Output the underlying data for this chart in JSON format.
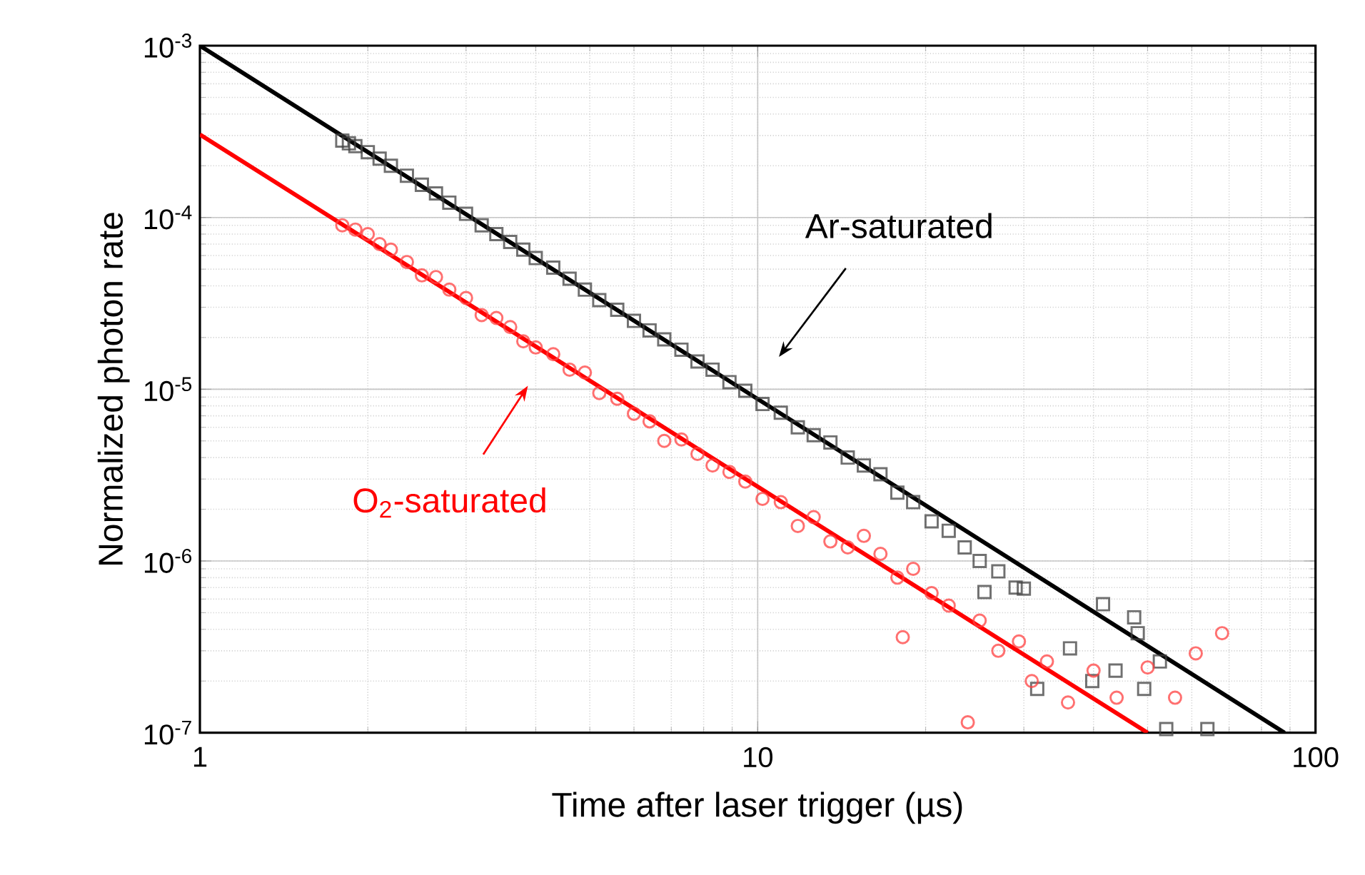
{
  "chart_data": {
    "type": "scatter",
    "xlabel": "Time after laser trigger (µs)",
    "ylabel": "Normalized photon rate",
    "log": "xy",
    "grid": true,
    "xlim": [
      1,
      100
    ],
    "ylim": [
      1e-07,
      0.001
    ],
    "xticks": [
      1,
      10,
      100
    ],
    "yticks": [
      {
        "value": 1e-07,
        "label": "10$^{-7}$"
      },
      {
        "value": 1e-06,
        "label": "10$^{-6}$"
      },
      {
        "value": 1e-05,
        "label": "10$^{-5}$"
      },
      {
        "value": 0.0001,
        "label": "10$^{-4}$"
      },
      {
        "value": 0.001,
        "label": "10$^{-3}$"
      }
    ],
    "series": [
      {
        "marker": "square",
        "color": "#404040",
        "x": [
          1.8,
          1.85,
          1.9,
          2.0,
          2.1,
          2.2,
          2.35,
          2.5,
          2.65,
          2.8,
          3.0,
          3.2,
          3.4,
          3.6,
          3.8,
          4.0,
          4.3,
          4.6,
          4.9,
          5.2,
          5.6,
          6.0,
          6.4,
          6.8,
          7.3,
          7.8,
          8.3,
          8.9,
          9.5,
          10.2,
          11,
          11.8,
          12.6,
          13.5,
          14.5,
          15.5,
          16.6,
          17.8,
          19,
          20.5,
          22,
          23.5,
          25,
          25.5,
          27,
          29,
          30,
          31.7,
          36.3,
          39.8,
          41.6,
          43.8,
          47.3,
          48,
          49.3,
          52.6,
          54,
          64
        ],
        "values": [
          0.00028,
          0.00027,
          0.00026,
          0.00024,
          0.00022,
          0.0002,
          0.000175,
          0.000155,
          0.000138,
          0.000122,
          0.000105,
          9e-05,
          8e-05,
          7.2e-05,
          6.5e-05,
          5.8e-05,
          5.1e-05,
          4.4e-05,
          3.8e-05,
          3.3e-05,
          2.9e-05,
          2.5e-05,
          2.2e-05,
          1.95e-05,
          1.7e-05,
          1.45e-05,
          1.3e-05,
          1.1e-05,
          9.8e-06,
          8.2e-06,
          7.3e-06,
          6e-06,
          5.4e-06,
          4.9e-06,
          4e-06,
          3.6e-06,
          3.2e-06,
          2.5e-06,
          2.2e-06,
          1.7e-06,
          1.5e-06,
          1.2e-06,
          1e-06,
          6.6e-07,
          8.7e-07,
          7e-07,
          6.9e-07,
          1.8e-07,
          3.1e-07,
          2e-07,
          5.6e-07,
          2.3e-07,
          4.7e-07,
          3.8e-07,
          1.8e-07,
          2.6e-07,
          1.05e-07,
          1.05e-07
        ]
      },
      {
        "marker": "circle",
        "color": "#ff4040",
        "x": [
          1.8,
          1.9,
          2.0,
          2.1,
          2.2,
          2.35,
          2.5,
          2.65,
          2.8,
          3.0,
          3.2,
          3.4,
          3.6,
          3.8,
          4.0,
          4.3,
          4.6,
          4.9,
          5.2,
          5.6,
          6.0,
          6.4,
          6.8,
          7.3,
          7.8,
          8.3,
          8.9,
          9.5,
          10.2,
          11,
          11.8,
          12.6,
          13.5,
          14.5,
          15.5,
          16.6,
          17.8,
          18.2,
          19,
          20.5,
          22,
          23.8,
          25,
          27,
          29.4,
          31,
          33,
          36,
          40,
          44,
          50,
          56,
          61,
          68
        ],
        "values": [
          9e-05,
          8.5e-05,
          8e-05,
          7e-05,
          6.5e-05,
          5.5e-05,
          4.6e-05,
          4.5e-05,
          3.8e-05,
          3.4e-05,
          2.7e-05,
          2.6e-05,
          2.3e-05,
          1.9e-05,
          1.75e-05,
          1.6e-05,
          1.3e-05,
          1.25e-05,
          9.5e-06,
          8.8e-06,
          7.2e-06,
          6.5e-06,
          5e-06,
          5.1e-06,
          4.2e-06,
          3.6e-06,
          3.3e-06,
          2.9e-06,
          2.3e-06,
          2.2e-06,
          1.6e-06,
          1.8e-06,
          1.3e-06,
          1.2e-06,
          1.4e-06,
          1.1e-06,
          8e-07,
          3.6e-07,
          9e-07,
          6.5e-07,
          5.5e-07,
          1.15e-07,
          4.5e-07,
          3e-07,
          3.4e-07,
          2e-07,
          2.6e-07,
          1.5e-07,
          2.3e-07,
          1.6e-07,
          2.4e-07,
          1.6e-07,
          2.9e-07,
          3.8e-07
        ]
      },
      {
        "type": "line",
        "marker": "none",
        "color": "#000000",
        "x": [
          1,
          88
        ],
        "values": [
          0.001,
          1e-07
        ]
      },
      {
        "type": "line",
        "marker": "none",
        "color": "#ff0000",
        "x": [
          1,
          50
        ],
        "values": [
          0.000304,
          1e-07
        ]
      }
    ],
    "annotations": [
      "Ar-saturated",
      "O$_{2}$-saturated"
    ]
  }
}
